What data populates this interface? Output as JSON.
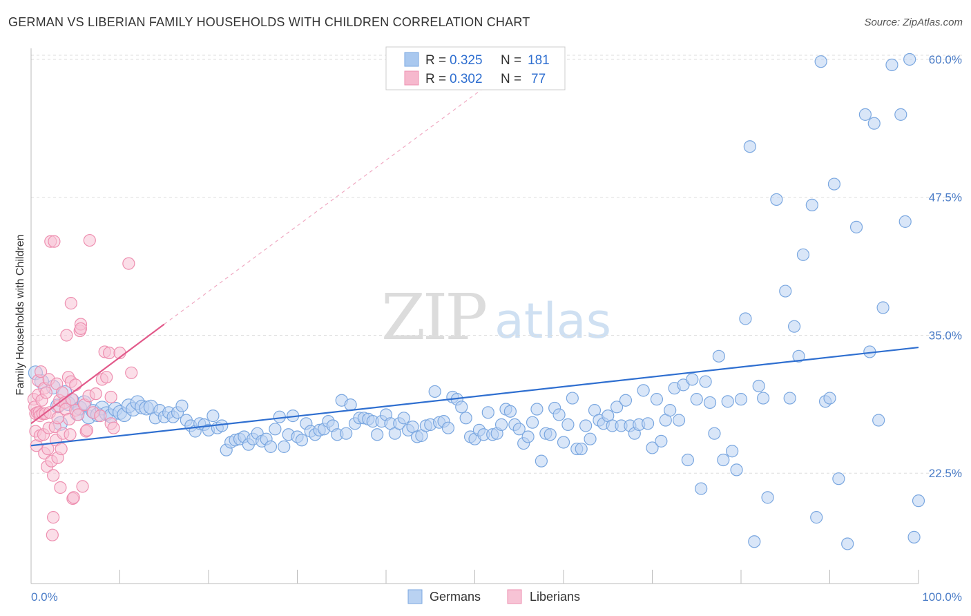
{
  "title": "GERMAN VS LIBERIAN FAMILY HOUSEHOLDS WITH CHILDREN CORRELATION CHART",
  "source": "Source: ZipAtlas.com",
  "watermark": {
    "zip": "ZIP",
    "atlas": "atlas"
  },
  "legend": {
    "rows": [
      {
        "r_label": "R =",
        "r_value": "0.325",
        "n_label": "N =",
        "n_value": "181",
        "color": "#a9c8ef"
      },
      {
        "r_label": "R =",
        "r_value": "0.302",
        "n_label": "N =",
        "n_value": "77",
        "color": "#f6b8cd"
      }
    ]
  },
  "chart_data": {
    "type": "scatter",
    "title": "GERMAN VS LIBERIAN FAMILY HOUSEHOLDS WITH CHILDREN CORRELATION CHART",
    "xlabel": "",
    "ylabel": "Family Households with Children",
    "xlim": [
      0,
      100
    ],
    "ylim": [
      12.5,
      61
    ],
    "x_tick_labels": [
      "0.0%",
      "100.0%"
    ],
    "y_ticks": [
      {
        "value": 22.5,
        "label": "22.5%"
      },
      {
        "value": 35.0,
        "label": "35.0%"
      },
      {
        "value": 47.5,
        "label": "47.5%"
      },
      {
        "value": 60.0,
        "label": "60.0%"
      }
    ],
    "grid": "horizontal dashed",
    "legend_position": "top-center",
    "series": [
      {
        "name": "Germans",
        "color": "#7aa7e0",
        "fill": "#b9d2f2",
        "trend": {
          "x0": 0,
          "y0": 25.0,
          "x1": 100,
          "y1": 33.9,
          "color": "#2f6fd0"
        },
        "points": [
          [
            0.5,
            31.6
          ],
          [
            1.2,
            30.8
          ],
          [
            2.5,
            30.3
          ],
          [
            3.0,
            28.6
          ],
          [
            3.3,
            27.0
          ],
          [
            3.8,
            29.8
          ],
          [
            4.2,
            28.8
          ],
          [
            4.6,
            29.1
          ],
          [
            5.2,
            27.9
          ],
          [
            5.5,
            28.4
          ],
          [
            6.0,
            28.9
          ],
          [
            6.5,
            27.6
          ],
          [
            7.0,
            28.1
          ],
          [
            7.5,
            27.8
          ],
          [
            8.0,
            28.4
          ],
          [
            8.5,
            27.9
          ],
          [
            9.0,
            27.7
          ],
          [
            9.5,
            28.3
          ],
          [
            10.0,
            28.0
          ],
          [
            10.5,
            27.8
          ],
          [
            11.0,
            28.6
          ],
          [
            11.5,
            28.3
          ],
          [
            12.0,
            28.9
          ],
          [
            12.5,
            28.5
          ],
          [
            13.0,
            28.4
          ],
          [
            13.5,
            28.5
          ],
          [
            14.0,
            27.5
          ],
          [
            14.5,
            28.2
          ],
          [
            15.0,
            27.6
          ],
          [
            15.5,
            28.0
          ],
          [
            16.0,
            27.6
          ],
          [
            16.5,
            28.0
          ],
          [
            17.0,
            28.6
          ],
          [
            17.5,
            27.3
          ],
          [
            18.0,
            26.8
          ],
          [
            18.5,
            26.3
          ],
          [
            19.0,
            27.0
          ],
          [
            19.5,
            26.9
          ],
          [
            20.0,
            26.4
          ],
          [
            20.5,
            27.7
          ],
          [
            21.0,
            26.6
          ],
          [
            21.5,
            26.8
          ],
          [
            22.0,
            24.6
          ],
          [
            22.5,
            25.3
          ],
          [
            23.0,
            25.5
          ],
          [
            23.5,
            25.6
          ],
          [
            24.0,
            25.8
          ],
          [
            24.5,
            25.1
          ],
          [
            25.0,
            25.6
          ],
          [
            25.5,
            26.1
          ],
          [
            26.0,
            25.4
          ],
          [
            26.5,
            25.6
          ],
          [
            27.0,
            24.9
          ],
          [
            27.5,
            26.5
          ],
          [
            28.0,
            27.6
          ],
          [
            28.5,
            24.9
          ],
          [
            29.0,
            26.0
          ],
          [
            29.5,
            27.7
          ],
          [
            30.0,
            25.8
          ],
          [
            30.5,
            25.5
          ],
          [
            31.0,
            27.0
          ],
          [
            31.5,
            26.3
          ],
          [
            32.0,
            26.0
          ],
          [
            32.5,
            26.4
          ],
          [
            33.0,
            26.5
          ],
          [
            33.5,
            27.2
          ],
          [
            34.0,
            26.8
          ],
          [
            34.5,
            26.0
          ],
          [
            35.0,
            29.1
          ],
          [
            35.5,
            26.1
          ],
          [
            36.0,
            28.7
          ],
          [
            36.5,
            27.0
          ],
          [
            37.0,
            27.5
          ],
          [
            37.5,
            27.5
          ],
          [
            38.0,
            27.4
          ],
          [
            38.5,
            27.2
          ],
          [
            39.0,
            26.0
          ],
          [
            39.5,
            27.2
          ],
          [
            40.0,
            27.8
          ],
          [
            40.5,
            27.0
          ],
          [
            41.0,
            26.1
          ],
          [
            41.5,
            27.0
          ],
          [
            42.0,
            27.5
          ],
          [
            42.5,
            26.4
          ],
          [
            43.0,
            26.7
          ],
          [
            43.5,
            25.8
          ],
          [
            44.0,
            25.9
          ],
          [
            44.5,
            26.8
          ],
          [
            45.0,
            26.9
          ],
          [
            45.5,
            29.9
          ],
          [
            46.0,
            27.1
          ],
          [
            46.5,
            27.2
          ],
          [
            47.0,
            26.6
          ],
          [
            47.5,
            29.4
          ],
          [
            48.0,
            29.2
          ],
          [
            48.5,
            28.5
          ],
          [
            49.0,
            27.5
          ],
          [
            49.5,
            25.8
          ],
          [
            50.0,
            25.6
          ],
          [
            50.5,
            26.4
          ],
          [
            51.0,
            26.0
          ],
          [
            51.5,
            28.0
          ],
          [
            52.0,
            26.0
          ],
          [
            52.5,
            26.1
          ],
          [
            53.0,
            26.9
          ],
          [
            53.5,
            28.3
          ],
          [
            54.0,
            28.1
          ],
          [
            54.5,
            26.9
          ],
          [
            55.0,
            26.5
          ],
          [
            55.5,
            25.2
          ],
          [
            56.0,
            25.8
          ],
          [
            56.5,
            27.1
          ],
          [
            57.0,
            28.3
          ],
          [
            57.5,
            23.6
          ],
          [
            58.0,
            26.1
          ],
          [
            58.5,
            26.0
          ],
          [
            59.0,
            28.4
          ],
          [
            59.5,
            27.8
          ],
          [
            60.0,
            25.3
          ],
          [
            60.5,
            26.9
          ],
          [
            61.0,
            29.3
          ],
          [
            61.5,
            24.7
          ],
          [
            62.0,
            24.7
          ],
          [
            62.5,
            26.8
          ],
          [
            63.0,
            25.6
          ],
          [
            63.5,
            28.2
          ],
          [
            64.0,
            27.3
          ],
          [
            64.5,
            27.0
          ],
          [
            65.0,
            27.7
          ],
          [
            65.5,
            26.8
          ],
          [
            66.0,
            28.5
          ],
          [
            66.5,
            26.8
          ],
          [
            67.0,
            29.1
          ],
          [
            67.5,
            26.8
          ],
          [
            68.0,
            26.1
          ],
          [
            68.5,
            26.9
          ],
          [
            69.0,
            30.0
          ],
          [
            69.5,
            27.0
          ],
          [
            70.0,
            24.8
          ],
          [
            70.5,
            29.2
          ],
          [
            71.0,
            25.4
          ],
          [
            71.5,
            27.3
          ],
          [
            72.0,
            28.2
          ],
          [
            72.5,
            30.2
          ],
          [
            73.0,
            27.3
          ],
          [
            73.5,
            30.5
          ],
          [
            74.0,
            23.7
          ],
          [
            74.5,
            31.0
          ],
          [
            75.0,
            29.2
          ],
          [
            75.5,
            21.1
          ],
          [
            76.0,
            30.8
          ],
          [
            76.5,
            28.9
          ],
          [
            77.0,
            26.1
          ],
          [
            77.5,
            33.1
          ],
          [
            78.0,
            23.7
          ],
          [
            78.5,
            29.0
          ],
          [
            79.0,
            24.5
          ],
          [
            79.5,
            22.8
          ],
          [
            80.0,
            29.2
          ],
          [
            80.5,
            36.5
          ],
          [
            81.0,
            52.1
          ],
          [
            82.0,
            30.4
          ],
          [
            82.5,
            29.3
          ],
          [
            83.0,
            20.3
          ],
          [
            84.0,
            47.3
          ],
          [
            85.0,
            39.0
          ],
          [
            85.5,
            29.3
          ],
          [
            86.0,
            35.8
          ],
          [
            86.5,
            33.1
          ],
          [
            87.0,
            42.3
          ],
          [
            88.0,
            46.8
          ],
          [
            88.5,
            18.5
          ],
          [
            89.0,
            59.8
          ],
          [
            89.5,
            29.0
          ],
          [
            90.0,
            29.3
          ],
          [
            90.5,
            48.7
          ],
          [
            91.0,
            22.0
          ],
          [
            92.0,
            16.1
          ],
          [
            93.0,
            44.8
          ],
          [
            94.0,
            55.0
          ],
          [
            94.5,
            33.5
          ],
          [
            95.0,
            54.2
          ],
          [
            95.5,
            27.3
          ],
          [
            96.0,
            37.5
          ],
          [
            97.0,
            59.5
          ],
          [
            98.0,
            55.0
          ],
          [
            98.5,
            45.3
          ],
          [
            99.0,
            60.0
          ],
          [
            99.5,
            16.7
          ],
          [
            100.0,
            20.0
          ],
          [
            81.5,
            16.3
          ]
        ]
      },
      {
        "name": "Liberians",
        "color": "#ee8fb0",
        "fill": "#f7c3d5",
        "trend": {
          "x0": 0,
          "y0": 27.0,
          "x1": 15,
          "y1": 36.0,
          "dash_x1": 52,
          "dash_y1": 58.0,
          "color": "#e2598a"
        },
        "points": [
          [
            0.3,
            29.2
          ],
          [
            0.4,
            28.5
          ],
          [
            0.5,
            27.9
          ],
          [
            0.5,
            26.3
          ],
          [
            0.6,
            25.0
          ],
          [
            0.7,
            28.0
          ],
          [
            0.8,
            29.6
          ],
          [
            0.8,
            30.9
          ],
          [
            0.9,
            28.0
          ],
          [
            1.0,
            27.7
          ],
          [
            1.0,
            25.9
          ],
          [
            1.1,
            31.7
          ],
          [
            1.2,
            29.1
          ],
          [
            1.3,
            27.9
          ],
          [
            1.4,
            26.0
          ],
          [
            1.5,
            30.2
          ],
          [
            1.5,
            24.3
          ],
          [
            1.6,
            27.9
          ],
          [
            1.7,
            29.8
          ],
          [
            1.8,
            23.1
          ],
          [
            1.9,
            24.7
          ],
          [
            2.0,
            26.6
          ],
          [
            2.0,
            31.0
          ],
          [
            2.1,
            28.0
          ],
          [
            2.2,
            43.5
          ],
          [
            2.3,
            23.6
          ],
          [
            2.4,
            16.9
          ],
          [
            2.5,
            18.5
          ],
          [
            2.5,
            22.3
          ],
          [
            2.6,
            43.5
          ],
          [
            2.7,
            26.7
          ],
          [
            2.8,
            25.5
          ],
          [
            2.9,
            30.6
          ],
          [
            3.0,
            27.5
          ],
          [
            3.0,
            23.9
          ],
          [
            3.1,
            28.6
          ],
          [
            3.2,
            29.1
          ],
          [
            3.3,
            21.2
          ],
          [
            3.4,
            24.7
          ],
          [
            3.5,
            29.8
          ],
          [
            3.6,
            26.1
          ],
          [
            3.8,
            28.9
          ],
          [
            3.9,
            28.3
          ],
          [
            4.0,
            35.0
          ],
          [
            4.2,
            31.2
          ],
          [
            4.3,
            27.4
          ],
          [
            4.4,
            26.0
          ],
          [
            4.5,
            30.8
          ],
          [
            4.5,
            37.9
          ],
          [
            4.6,
            29.2
          ],
          [
            4.7,
            20.2
          ],
          [
            4.8,
            20.3
          ],
          [
            5.0,
            30.5
          ],
          [
            5.0,
            28.2
          ],
          [
            5.3,
            27.8
          ],
          [
            5.5,
            35.4
          ],
          [
            5.6,
            36.0
          ],
          [
            5.6,
            35.6
          ],
          [
            5.8,
            21.3
          ],
          [
            6.0,
            28.7
          ],
          [
            6.2,
            26.3
          ],
          [
            6.3,
            26.4
          ],
          [
            6.5,
            29.5
          ],
          [
            6.6,
            43.6
          ],
          [
            7.0,
            28.0
          ],
          [
            7.3,
            29.7
          ],
          [
            7.8,
            27.7
          ],
          [
            8.0,
            31.0
          ],
          [
            8.3,
            33.5
          ],
          [
            8.5,
            31.2
          ],
          [
            8.8,
            33.4
          ],
          [
            9.0,
            27.0
          ],
          [
            9.0,
            29.4
          ],
          [
            9.3,
            26.6
          ],
          [
            10.0,
            33.4
          ],
          [
            11.0,
            41.5
          ],
          [
            11.3,
            31.6
          ]
        ]
      }
    ]
  },
  "bottom_legend": [
    "Germans",
    "Liberians"
  ]
}
